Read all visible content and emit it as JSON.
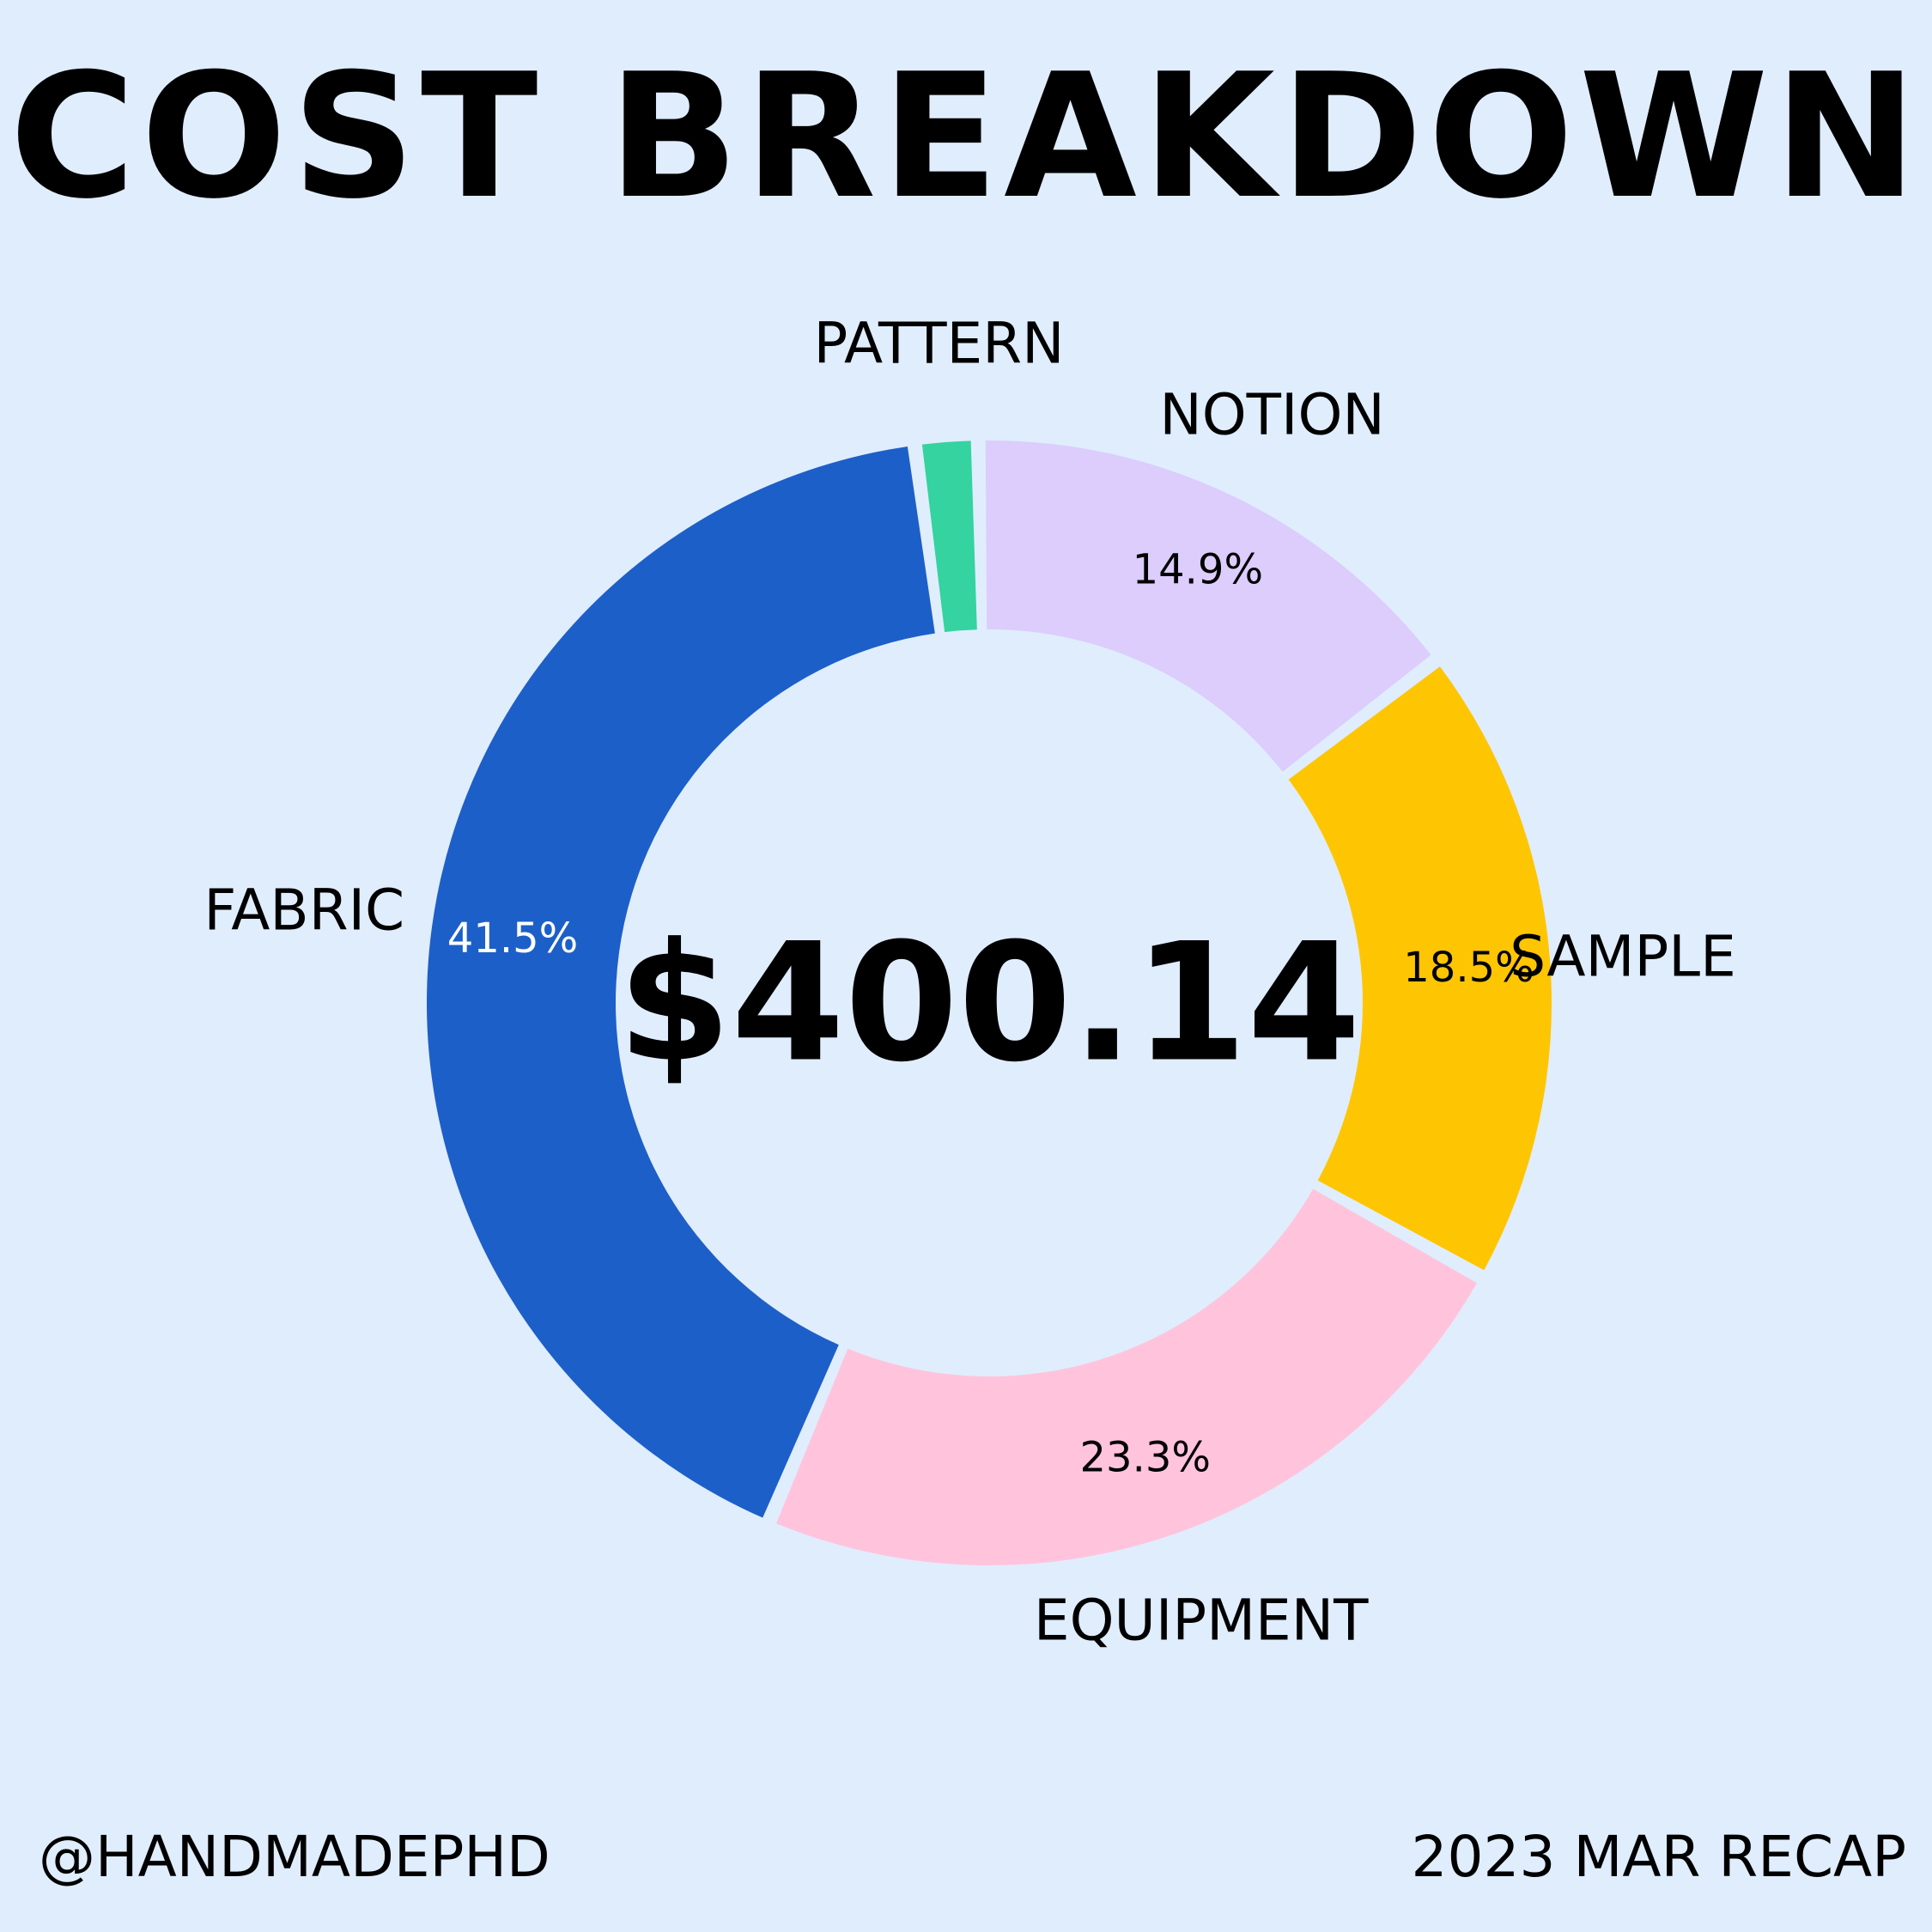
{
  "title": "COST BREAKDOWN",
  "footer": {
    "handle": "@HANDMADEPHD",
    "recap": "2023 MAR RECAP"
  },
  "colors": {
    "background": "#e0edfd",
    "text": "#000000"
  },
  "chart_data": {
    "type": "pie",
    "style": "donut",
    "center_label": "$400.14",
    "series": [
      {
        "name": "FABRIC",
        "value": 41.5,
        "label": "41.5%",
        "color": "#1d5fc8",
        "label_color": "#ffffff"
      },
      {
        "name": "PATTERN",
        "value": 1.8,
        "label": "",
        "color": "#34d39f",
        "label_color": "#000000"
      },
      {
        "name": "NOTION",
        "value": 14.9,
        "label": "14.9%",
        "color": "#dccdfc",
        "label_color": "#000000"
      },
      {
        "name": "SAMPLE",
        "value": 18.5,
        "label": "18.5%",
        "color": "#fec503",
        "label_color": "#000000"
      },
      {
        "name": "EQUIPMENT",
        "value": 23.3,
        "label": "23.3%",
        "color": "#ffc4dc",
        "label_color": "#000000"
      }
    ]
  }
}
